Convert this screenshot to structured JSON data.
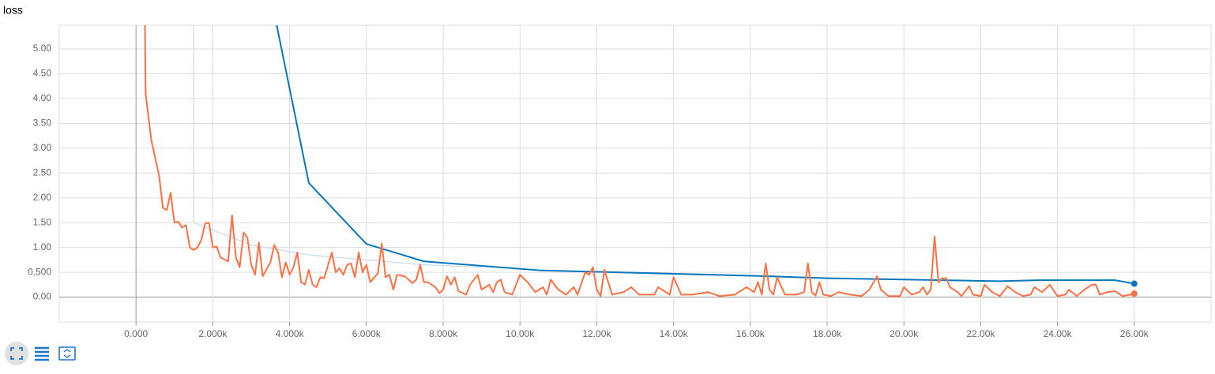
{
  "chart_data": {
    "type": "line",
    "title": "loss",
    "xlim": [
      -2000,
      28000
    ],
    "ylim": [
      -0.5,
      5.476
    ],
    "xticks": [
      {
        "value": 0,
        "label": "0.000"
      },
      {
        "value": 2000,
        "label": "2.000k"
      },
      {
        "value": 4000,
        "label": "4.000k"
      },
      {
        "value": 6000,
        "label": "6.000k"
      },
      {
        "value": 8000,
        "label": "8.000k"
      },
      {
        "value": 10000,
        "label": "10.00k"
      },
      {
        "value": 12000,
        "label": "12.00k"
      },
      {
        "value": 14000,
        "label": "14.00k"
      },
      {
        "value": 16000,
        "label": "16.00k"
      },
      {
        "value": 18000,
        "label": "18.00k"
      },
      {
        "value": 20000,
        "label": "20.00k"
      },
      {
        "value": 22000,
        "label": "22.00k"
      },
      {
        "value": 24000,
        "label": "24.00k"
      },
      {
        "value": 26000,
        "label": "26.00k"
      }
    ],
    "yticks": [
      {
        "value": 0,
        "label": "0.00"
      },
      {
        "value": 0.5,
        "label": "0.500"
      },
      {
        "value": 1,
        "label": "1.00"
      },
      {
        "value": 1.5,
        "label": "1.50"
      },
      {
        "value": 2,
        "label": "2.00"
      },
      {
        "value": 2.5,
        "label": "2.50"
      },
      {
        "value": 3,
        "label": "3.00"
      },
      {
        "value": 3.5,
        "label": "3.50"
      },
      {
        "value": 4,
        "label": "4.00"
      },
      {
        "value": 4.5,
        "label": "4.50"
      },
      {
        "value": 5,
        "label": "5.00"
      }
    ],
    "grid": true,
    "series": [
      {
        "color": "#c6dbef",
        "width": 1.2,
        "marker_last": false,
        "x": [
          1500,
          1500,
          3000,
          4500,
          6000,
          7500,
          9000
        ],
        "values": [
          6,
          1.5,
          1.05,
          0.85,
          0.75,
          0.65,
          0.6
        ]
      },
      {
        "color": "#0877bd",
        "width": 2,
        "marker_last": true,
        "x": [
          3500,
          4500,
          6000,
          7500,
          10500,
          12000,
          16500,
          18000,
          22500,
          23500,
          25500,
          26000
        ],
        "values": [
          6.1,
          2.3,
          1.07,
          0.72,
          0.54,
          0.51,
          0.42,
          0.38,
          0.32,
          0.34,
          0.34,
          0.27
        ]
      },
      {
        "color": "#ff7043",
        "width": 2,
        "marker_last": true,
        "x": [
          200,
          250,
          400,
          600,
          700,
          800,
          900,
          1000,
          1100,
          1200,
          1300,
          1400,
          1500,
          1600,
          1700,
          1800,
          1900,
          2000,
          2100,
          2200,
          2400,
          2500,
          2600,
          2700,
          2800,
          2900,
          3000,
          3100,
          3200,
          3300,
          3500,
          3600,
          3700,
          3800,
          3900,
          4000,
          4100,
          4200,
          4300,
          4400,
          4500,
          4600,
          4700,
          4800,
          4900,
          5100,
          5200,
          5300,
          5400,
          5500,
          5600,
          5700,
          5800,
          5900,
          6000,
          6100,
          6300,
          6400,
          6500,
          6600,
          6700,
          6800,
          7000,
          7200,
          7300,
          7400,
          7500,
          7600,
          7800,
          7900,
          8000,
          8100,
          8200,
          8300,
          8400,
          8600,
          8700,
          8900,
          9000,
          9200,
          9300,
          9400,
          9500,
          9600,
          9800,
          10000,
          10200,
          10400,
          10600,
          10700,
          10800,
          11000,
          11200,
          11400,
          11500,
          11700,
          11800,
          11900,
          12000,
          12100,
          12200,
          12400,
          12700,
          12900,
          13100,
          13500,
          13600,
          13900,
          14000,
          14200,
          14500,
          14900,
          15200,
          15600,
          15900,
          16100,
          16200,
          16300,
          16400,
          16500,
          16600,
          16700,
          16900,
          17200,
          17400,
          17500,
          17600,
          17700,
          17800,
          17900,
          18100,
          18300,
          18600,
          18900,
          19100,
          19300,
          19400,
          19600,
          19900,
          20000,
          20200,
          20400,
          20500,
          20600,
          20700,
          20800,
          20900,
          21000,
          21100,
          21200,
          21400,
          21500,
          21700,
          21800,
          22000,
          22100,
          22300,
          22500,
          22700,
          22900,
          23100,
          23300,
          23400,
          23600,
          23800,
          24000,
          24200,
          24300,
          24500,
          24700,
          24900,
          25000,
          25100,
          25300,
          25500,
          25700,
          25900,
          26000
        ],
        "values": [
          8,
          4.1,
          3.15,
          2.45,
          1.8,
          1.75,
          2.1,
          1.5,
          1.52,
          1.4,
          1.45,
          1.0,
          0.95,
          1.0,
          1.15,
          1.48,
          1.5,
          1.0,
          1.02,
          0.8,
          0.72,
          1.65,
          0.8,
          0.6,
          1.3,
          1.2,
          0.65,
          0.45,
          1.1,
          0.42,
          0.7,
          1.05,
          0.9,
          0.4,
          0.7,
          0.45,
          0.6,
          0.9,
          0.3,
          0.25,
          0.55,
          0.25,
          0.2,
          0.4,
          0.38,
          0.9,
          0.5,
          0.58,
          0.45,
          0.65,
          0.68,
          0.4,
          0.9,
          0.5,
          0.65,
          0.3,
          0.48,
          1.08,
          0.4,
          0.45,
          0.15,
          0.45,
          0.42,
          0.28,
          0.35,
          0.65,
          0.3,
          0.3,
          0.2,
          0.08,
          0.15,
          0.42,
          0.25,
          0.4,
          0.12,
          0.05,
          0.25,
          0.45,
          0.15,
          0.25,
          0.1,
          0.3,
          0.35,
          0.1,
          0.05,
          0.45,
          0.3,
          0.1,
          0.2,
          0.05,
          0.35,
          0.15,
          0.05,
          0.2,
          0.05,
          0.5,
          0.45,
          0.6,
          0.15,
          0.02,
          0.55,
          0.05,
          0.1,
          0.2,
          0.05,
          0.05,
          0.2,
          0.05,
          0.4,
          0.05,
          0.05,
          0.1,
          0.02,
          0.05,
          0.2,
          0.1,
          0.3,
          0.05,
          0.68,
          0.15,
          0.05,
          0.4,
          0.05,
          0.05,
          0.1,
          0.68,
          0.1,
          0.03,
          0.3,
          0.05,
          0.02,
          0.1,
          0.05,
          0.02,
          0.15,
          0.42,
          0.15,
          0.02,
          0.02,
          0.2,
          0.05,
          0.1,
          0.2,
          0.05,
          0.15,
          1.22,
          0.3,
          0.38,
          0.38,
          0.2,
          0.1,
          0.02,
          0.22,
          0.05,
          0.02,
          0.25,
          0.1,
          0.02,
          0.22,
          0.1,
          0.02,
          0.05,
          0.2,
          0.1,
          0.25,
          0.02,
          0.05,
          0.15,
          0.02,
          0.15,
          0.25,
          0.25,
          0.05,
          0.1,
          0.12,
          0.02,
          0.05,
          0.07
        ]
      }
    ]
  }
}
